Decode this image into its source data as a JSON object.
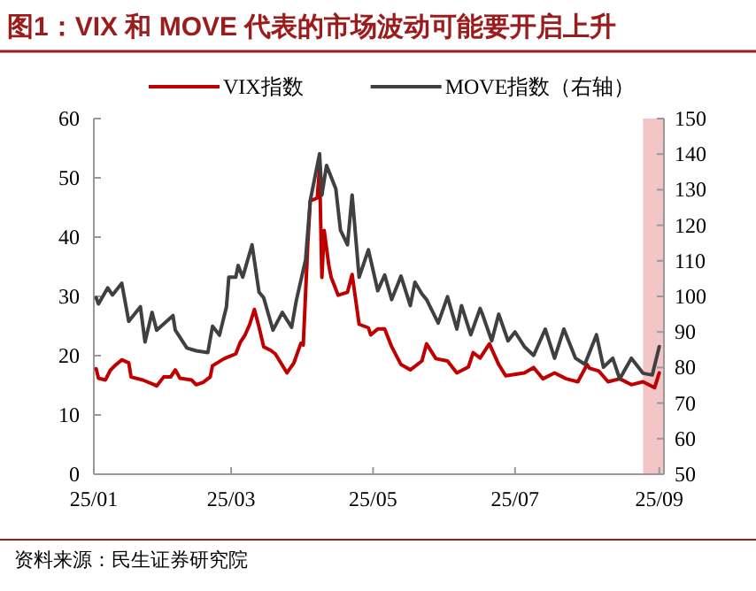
{
  "chart_data": {
    "type": "line",
    "title": "图1：VIX 和 MOVE 代表的市场波动可能要开启上升",
    "annotations": [
      "资料来源：民生证券研究院"
    ],
    "xlim": [
      "--01-01",
      "--09-03"
    ],
    "xticks": [
      {
        "value": "--01-01",
        "label": "25/01"
      },
      {
        "value": "--03-01",
        "label": "25/03"
      },
      {
        "value": "--05-01",
        "label": "25/05"
      },
      {
        "value": "--07-01",
        "label": "25/07"
      },
      {
        "value": "--09-01",
        "label": "25/09"
      }
    ],
    "ylim": [
      0,
      60
    ],
    "yticks": [
      0,
      10,
      20,
      30,
      40,
      50,
      60
    ],
    "y2lim": [
      50,
      150
    ],
    "y2ticks": [
      50,
      60,
      70,
      80,
      90,
      100,
      110,
      120,
      130,
      140,
      150
    ],
    "legend": "top",
    "grid": false,
    "bands": [
      {
        "axis": "x",
        "from": "--08-25",
        "to": "--09-03",
        "color": "#f2c6c6"
      }
    ],
    "series": [
      {
        "name": "VIX指数",
        "color": "#c00000",
        "x": [
          "--01-02",
          "--01-03",
          "--01-06",
          "--01-08",
          "--01-10",
          "--01-13",
          "--01-16",
          "--01-17",
          "--01-22",
          "--01-27",
          "--01-28",
          "--01-31",
          "--02-03",
          "--02-05",
          "--02-07",
          "--02-12",
          "--02-14",
          "--02-17",
          "--02-20",
          "--02-21",
          "--02-26",
          "--03-03",
          "--03-05",
          "--03-07",
          "--03-09",
          "--03-11",
          "--03-13",
          "--03-15",
          "--03-18",
          "--03-20",
          "--03-25",
          "--03-28",
          "--03-31",
          "--04-01",
          "--04-03",
          "--04-04",
          "--04-07",
          "--04-08",
          "--04-09",
          "--04-10",
          "--04-12",
          "--04-13",
          "--04-16",
          "--04-20",
          "--04-22",
          "--04-25",
          "--04-29",
          "--04-30",
          "--05-03",
          "--05-06",
          "--05-09",
          "--05-13",
          "--05-17",
          "--05-22",
          "--05-24",
          "--05-28",
          "--06-02",
          "--06-06",
          "--06-11",
          "--06-13",
          "--06-16",
          "--06-20",
          "--06-24",
          "--06-27",
          "--07-05",
          "--07-09",
          "--07-13",
          "--07-18",
          "--07-23",
          "--07-28",
          "--08-01",
          "--08-02",
          "--08-06",
          "--08-10",
          "--08-15",
          "--08-20",
          "--08-25",
          "--08-30",
          "--09-01"
        ],
        "values": [
          17.8,
          16.2,
          15.9,
          17.5,
          18.3,
          19.3,
          18.8,
          16.4,
          15.9,
          15.1,
          14.9,
          16.4,
          16.4,
          17.6,
          16.2,
          15.9,
          15.1,
          15.5,
          16.4,
          18.3,
          19.5,
          20.3,
          22.3,
          23.5,
          25.3,
          27.8,
          24.8,
          21.5,
          20.9,
          20.3,
          17.1,
          18.8,
          22.1,
          21.8,
          39.2,
          46.1,
          46.6,
          51.6,
          33.2,
          41.1,
          35.2,
          33.2,
          30.2,
          30.7,
          33.7,
          25.3,
          24.7,
          23.5,
          24.5,
          24.5,
          21.5,
          18.5,
          17.6,
          19.1,
          22.0,
          19.5,
          19.1,
          17.1,
          18.1,
          20.5,
          19.6,
          22.0,
          18.5,
          16.6,
          17.1,
          18.0,
          16.1,
          17.1,
          16.1,
          15.6,
          18.5,
          17.9,
          17.4,
          15.6,
          16.1,
          15.1,
          15.6,
          14.6,
          17.1
        ]
      },
      {
        "name": "MOVE指数（右轴）",
        "color": "#404040",
        "axis": "y2",
        "x": [
          "--01-02",
          "--01-03",
          "--01-07",
          "--01-09",
          "--01-13",
          "--01-16",
          "--01-21",
          "--01-23",
          "--01-26",
          "--01-28",
          "--02-04",
          "--02-05",
          "--02-10",
          "--02-14",
          "--02-19",
          "--02-21",
          "--02-24",
          "--02-27",
          "--02-28",
          "--03-03",
          "--03-04",
          "--03-06",
          "--03-10",
          "--03-13",
          "--03-15",
          "--03-19",
          "--03-23",
          "--03-27",
          "--03-29",
          "--04-02",
          "--04-04",
          "--04-08",
          "--04-09",
          "--04-11",
          "--04-15",
          "--04-17",
          "--04-20",
          "--04-22",
          "--04-25",
          "--04-29",
          "--05-03",
          "--05-06",
          "--05-09",
          "--05-13",
          "--05-17",
          "--05-19",
          "--05-22",
          "--05-24",
          "--05-29",
          "--06-02",
          "--06-06",
          "--06-08",
          "--06-12",
          "--06-16",
          "--06-17",
          "--06-21",
          "--06-24",
          "--06-28",
          "--07-01",
          "--07-05",
          "--07-09",
          "--07-14",
          "--07-18",
          "--07-22",
          "--07-27",
          "--07-31",
          "--08-05",
          "--08-08",
          "--08-12",
          "--08-15",
          "--08-20",
          "--08-25",
          "--08-29",
          "--09-01"
        ],
        "values": [
          99.6,
          97.9,
          102.4,
          100.4,
          103.7,
          93.0,
          97.1,
          87.2,
          95.5,
          90.5,
          94.6,
          90.5,
          85.5,
          84.7,
          84.2,
          91.6,
          89.1,
          97.1,
          105.4,
          105.4,
          108.7,
          105.4,
          114.5,
          101.2,
          99.6,
          90.5,
          95.5,
          91.3,
          98.8,
          110.3,
          126.9,
          140.1,
          128.5,
          136.8,
          130.2,
          118.6,
          114.5,
          128.5,
          105.4,
          113.1,
          101.6,
          106.0,
          99.1,
          105.7,
          97.4,
          104.0,
          100.7,
          99.1,
          92.5,
          99.9,
          90.8,
          97.4,
          89.2,
          96.6,
          95.0,
          87.5,
          95.0,
          87.5,
          90.0,
          85.9,
          83.4,
          90.8,
          82.6,
          90.8,
          82.6,
          80.9,
          89.2,
          80.1,
          82.6,
          76.8,
          82.6,
          78.4,
          77.9,
          85.9
        ]
      }
    ]
  }
}
